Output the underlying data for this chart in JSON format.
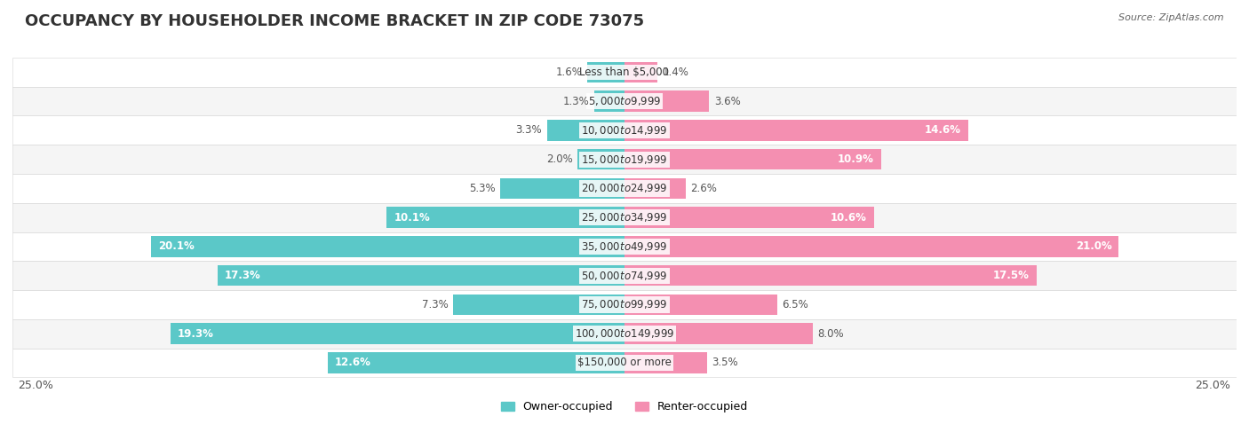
{
  "title": "OCCUPANCY BY HOUSEHOLDER INCOME BRACKET IN ZIP CODE 73075",
  "source": "Source: ZipAtlas.com",
  "categories": [
    "Less than $5,000",
    "$5,000 to $9,999",
    "$10,000 to $14,999",
    "$15,000 to $19,999",
    "$20,000 to $24,999",
    "$25,000 to $34,999",
    "$35,000 to $49,999",
    "$50,000 to $74,999",
    "$75,000 to $99,999",
    "$100,000 to $149,999",
    "$150,000 or more"
  ],
  "owner_values": [
    1.6,
    1.3,
    3.3,
    2.0,
    5.3,
    10.1,
    20.1,
    17.3,
    7.3,
    19.3,
    12.6
  ],
  "renter_values": [
    1.4,
    3.6,
    14.6,
    10.9,
    2.6,
    10.6,
    21.0,
    17.5,
    6.5,
    8.0,
    3.5
  ],
  "owner_color": "#5bc8c8",
  "renter_color": "#f48fb1",
  "bar_bg_color": "#f0f0f0",
  "row_bg_color_even": "#ffffff",
  "row_bg_color_odd": "#f5f5f5",
  "max_value": 25.0,
  "title_fontsize": 13,
  "label_fontsize": 8.5,
  "tick_fontsize": 9,
  "legend_fontsize": 9,
  "source_fontsize": 8,
  "title_color": "#333333",
  "source_color": "#666666",
  "label_color_inside": "#ffffff",
  "label_color_outside": "#555555"
}
